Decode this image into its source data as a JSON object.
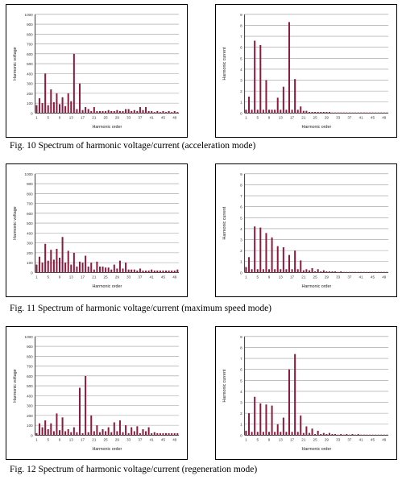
{
  "captions": [
    "Fig. 10 Spectrum of harmonic voltage/current (acceleration mode)",
    "Fig. 11 Spectrum of harmonic voltage/current (maximum speed mode)",
    "Fig. 12 Spectrum of harmonic voltage/current (regeneration mode)"
  ],
  "colors": {
    "bar": "#8b1a3c",
    "grid": "#9a9a9a",
    "axis": "#000000"
  },
  "chart_data": [
    {
      "type": "bar",
      "xlabel": "Harmonic order",
      "ylabel": "Harmonic voltage",
      "ylim": [
        0,
        1000
      ],
      "yticks": [
        0,
        100,
        200,
        300,
        400,
        500,
        600,
        700,
        800,
        900,
        1000
      ],
      "x_ticks": [
        "1",
        "5",
        "9",
        "13",
        "17",
        "21",
        "25",
        "29",
        "33",
        "37",
        "41",
        "45",
        "49"
      ],
      "grid": true,
      "x": [
        1,
        2,
        3,
        4,
        5,
        6,
        7,
        8,
        9,
        10,
        11,
        12,
        13,
        14,
        15,
        16,
        17,
        18,
        19,
        20,
        21,
        22,
        23,
        24,
        25,
        26,
        27,
        28,
        29,
        30,
        31,
        32,
        33,
        34,
        35,
        36,
        37,
        38,
        39,
        40,
        41,
        42,
        43,
        44,
        45,
        46,
        47,
        48,
        49,
        50
      ],
      "values": [
        80,
        150,
        100,
        400,
        80,
        240,
        110,
        200,
        90,
        160,
        70,
        200,
        120,
        600,
        40,
        300,
        30,
        60,
        40,
        20,
        60,
        20,
        20,
        20,
        20,
        30,
        20,
        20,
        30,
        20,
        20,
        40,
        40,
        20,
        30,
        20,
        60,
        30,
        60,
        20,
        20,
        10,
        20,
        10,
        20,
        10,
        20,
        10,
        20,
        10
      ]
    },
    {
      "type": "bar",
      "xlabel": "Harmonic order",
      "ylabel": "Harmonic current",
      "ylim": [
        0,
        9
      ],
      "yticks": [
        0,
        1,
        2,
        3,
        4,
        5,
        6,
        7,
        8,
        9
      ],
      "x_ticks": [
        "1",
        "5",
        "9",
        "13",
        "17",
        "21",
        "25",
        "29",
        "33",
        "37",
        "41",
        "45",
        "49"
      ],
      "grid": true,
      "x": [
        1,
        2,
        3,
        4,
        5,
        6,
        7,
        8,
        9,
        10,
        11,
        12,
        13,
        14,
        15,
        16,
        17,
        18,
        19,
        20,
        21,
        22,
        23,
        24,
        25,
        26,
        27,
        28,
        29,
        30,
        31,
        32,
        33,
        34,
        35,
        36,
        37,
        38,
        39,
        40,
        41,
        42,
        43,
        44,
        45,
        46,
        47,
        48,
        49,
        50
      ],
      "values": [
        0.3,
        1.5,
        0.3,
        6.6,
        0.3,
        6.2,
        0.3,
        3.0,
        0.3,
        0.3,
        0.3,
        1.4,
        0.3,
        2.4,
        0.3,
        8.3,
        0.3,
        3.1,
        0.3,
        0.6,
        0.2,
        0.2,
        0.1,
        0.1,
        0.1,
        0.1,
        0.1,
        0.1,
        0.1,
        0.1,
        0.05,
        0.05,
        0.05,
        0.05,
        0.05,
        0.05,
        0.05,
        0.05,
        0.05,
        0.05,
        0.05,
        0.05,
        0.05,
        0.05,
        0.05,
        0.05,
        0.05,
        0.05,
        0.05,
        0.05
      ]
    },
    {
      "type": "bar",
      "xlabel": "Harmonic order",
      "ylabel": "Harmonic voltage",
      "ylim": [
        0,
        1000
      ],
      "yticks": [
        0,
        100,
        200,
        300,
        400,
        500,
        600,
        700,
        800,
        900,
        1000
      ],
      "x_ticks": [
        "1",
        "5",
        "9",
        "13",
        "17",
        "21",
        "25",
        "29",
        "33",
        "37",
        "41",
        "45",
        "49"
      ],
      "grid": true,
      "x": [
        1,
        2,
        3,
        4,
        5,
        6,
        7,
        8,
        9,
        10,
        11,
        12,
        13,
        14,
        15,
        16,
        17,
        18,
        19,
        20,
        21,
        22,
        23,
        24,
        25,
        26,
        27,
        28,
        29,
        30,
        31,
        32,
        33,
        34,
        35,
        36,
        37,
        38,
        39,
        40,
        41,
        42,
        43,
        44,
        45,
        46,
        47,
        48,
        49,
        50
      ],
      "values": [
        80,
        160,
        100,
        290,
        120,
        230,
        130,
        240,
        150,
        360,
        100,
        220,
        80,
        200,
        60,
        110,
        100,
        170,
        60,
        100,
        30,
        110,
        60,
        60,
        50,
        50,
        30,
        80,
        40,
        120,
        40,
        100,
        30,
        30,
        30,
        20,
        40,
        20,
        20,
        20,
        30,
        20,
        20,
        20,
        20,
        20,
        20,
        20,
        20,
        30
      ]
    },
    {
      "type": "bar",
      "xlabel": "Harmonic order",
      "ylabel": "Harmonic current",
      "ylim": [
        0,
        9
      ],
      "yticks": [
        0,
        1,
        2,
        3,
        4,
        5,
        6,
        7,
        8,
        9
      ],
      "x_ticks": [
        "1",
        "5",
        "9",
        "13",
        "17",
        "21",
        "25",
        "29",
        "33",
        "37",
        "41",
        "45",
        "49"
      ],
      "grid": true,
      "x": [
        1,
        2,
        3,
        4,
        5,
        6,
        7,
        8,
        9,
        10,
        11,
        12,
        13,
        14,
        15,
        16,
        17,
        18,
        19,
        20,
        21,
        22,
        23,
        24,
        25,
        26,
        27,
        28,
        29,
        30,
        31,
        32,
        33,
        34,
        35,
        36,
        37,
        38,
        39,
        40,
        41,
        42,
        43,
        44,
        45,
        46,
        47,
        48,
        49,
        50
      ],
      "values": [
        0.5,
        1.4,
        0.3,
        4.2,
        0.3,
        4.1,
        0.3,
        3.6,
        0.3,
        3.2,
        0.3,
        2.4,
        0.3,
        2.3,
        0.3,
        1.6,
        0.3,
        2.0,
        0.3,
        1.1,
        0.2,
        0.3,
        0.2,
        0.4,
        0.1,
        0.3,
        0.1,
        0.2,
        0.1,
        0.1,
        0.1,
        0.1,
        0.05,
        0.1,
        0.05,
        0.05,
        0.05,
        0.05,
        0.05,
        0.05,
        0.05,
        0.05,
        0.05,
        0.05,
        0.05,
        0.05,
        0.05,
        0.05,
        0.05,
        0.05
      ]
    },
    {
      "type": "bar",
      "xlabel": "Harmonic order",
      "ylabel": "Harmonic voltage",
      "ylim": [
        0,
        1000
      ],
      "yticks": [
        0,
        100,
        200,
        300,
        400,
        500,
        600,
        700,
        800,
        900,
        1000
      ],
      "x_ticks": [
        "1",
        "5",
        "9",
        "13",
        "17",
        "21",
        "25",
        "29",
        "33",
        "37",
        "41",
        "45",
        "49"
      ],
      "grid": true,
      "x": [
        1,
        2,
        3,
        4,
        5,
        6,
        7,
        8,
        9,
        10,
        11,
        12,
        13,
        14,
        15,
        16,
        17,
        18,
        19,
        20,
        21,
        22,
        23,
        24,
        25,
        26,
        27,
        28,
        29,
        30,
        31,
        32,
        33,
        34,
        35,
        36,
        37,
        38,
        39,
        40,
        41,
        42,
        43,
        44,
        45,
        46,
        47,
        48,
        49,
        50
      ],
      "values": [
        20,
        120,
        80,
        150,
        60,
        120,
        40,
        220,
        50,
        180,
        40,
        60,
        30,
        80,
        30,
        480,
        20,
        600,
        30,
        200,
        40,
        100,
        30,
        60,
        40,
        80,
        30,
        130,
        40,
        150,
        30,
        100,
        20,
        80,
        40,
        90,
        20,
        60,
        40,
        80,
        20,
        30,
        20,
        20,
        20,
        20,
        20,
        20,
        20,
        20
      ]
    },
    {
      "type": "bar",
      "xlabel": "Harmonic order",
      "ylabel": "Harmonic current",
      "ylim": [
        0,
        9
      ],
      "yticks": [
        0,
        1,
        2,
        3,
        4,
        5,
        6,
        7,
        8,
        9
      ],
      "x_ticks": [
        "1",
        "5",
        "9",
        "13",
        "17",
        "21",
        "25",
        "29",
        "33",
        "37",
        "41",
        "45",
        "49"
      ],
      "grid": true,
      "x": [
        1,
        2,
        3,
        4,
        5,
        6,
        7,
        8,
        9,
        10,
        11,
        12,
        13,
        14,
        15,
        16,
        17,
        18,
        19,
        20,
        21,
        22,
        23,
        24,
        25,
        26,
        27,
        28,
        29,
        30,
        31,
        32,
        33,
        34,
        35,
        36,
        37,
        38,
        39,
        40,
        41,
        42,
        43,
        44,
        45,
        46,
        47,
        48,
        49,
        50
      ],
      "values": [
        0.4,
        2.0,
        0.3,
        3.5,
        0.3,
        2.9,
        0.3,
        2.8,
        0.3,
        2.7,
        0.3,
        1.0,
        0.3,
        1.6,
        0.3,
        6.0,
        0.3,
        7.4,
        0.3,
        1.8,
        0.2,
        0.8,
        0.2,
        0.6,
        0.1,
        0.4,
        0.1,
        0.2,
        0.1,
        0.2,
        0.1,
        0.1,
        0.05,
        0.1,
        0.05,
        0.1,
        0.05,
        0.1,
        0.05,
        0.1,
        0.05,
        0.05,
        0.05,
        0.05,
        0.05,
        0.05,
        0.05,
        0.05,
        0.05,
        0.05
      ]
    }
  ]
}
